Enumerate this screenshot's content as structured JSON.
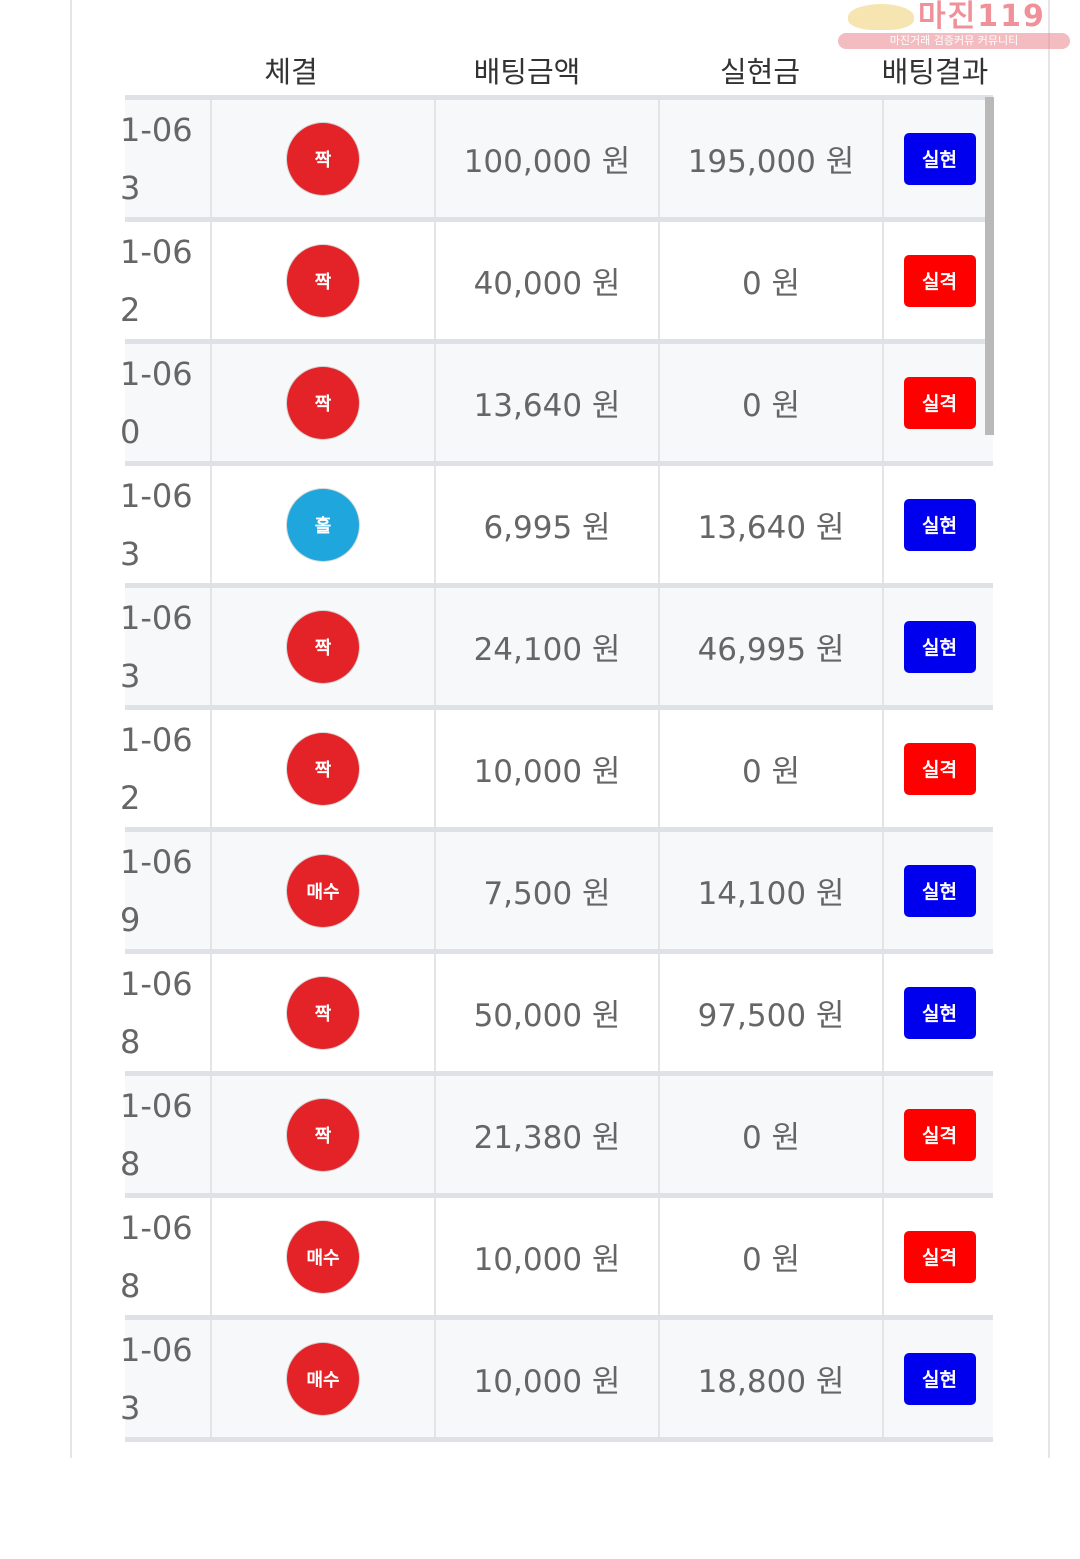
{
  "headers": {
    "executed": "체결",
    "bet_amount": "배팅금액",
    "realized": "실현금",
    "result": "배팅결과"
  },
  "watermark": {
    "title": "마진119",
    "subtitle": "마진거래 검증커뮤 커뮤니티"
  },
  "colors": {
    "red_circle": "#e32327",
    "blue_circle": "#1ea6dd",
    "win_badge": "#0000ee",
    "lose_badge": "#ff0000"
  },
  "rows": [
    {
      "date": "1-06",
      "num": "3",
      "pick": "짝",
      "pick_color": "red",
      "bet": "100,000 원",
      "realized": "195,000 원",
      "result": "실현",
      "result_type": "win"
    },
    {
      "date": "1-06",
      "num": "2",
      "pick": "짝",
      "pick_color": "red",
      "bet": "40,000 원",
      "realized": "0 원",
      "result": "실격",
      "result_type": "lose"
    },
    {
      "date": "1-06",
      "num": "0",
      "pick": "짝",
      "pick_color": "red",
      "bet": "13,640 원",
      "realized": "0 원",
      "result": "실격",
      "result_type": "lose"
    },
    {
      "date": "1-06",
      "num": "3",
      "pick": "홀",
      "pick_color": "blue",
      "bet": "6,995 원",
      "realized": "13,640 원",
      "result": "실현",
      "result_type": "win"
    },
    {
      "date": "1-06",
      "num": "3",
      "pick": "짝",
      "pick_color": "red",
      "bet": "24,100 원",
      "realized": "46,995 원",
      "result": "실현",
      "result_type": "win"
    },
    {
      "date": "1-06",
      "num": "2",
      "pick": "짝",
      "pick_color": "red",
      "bet": "10,000 원",
      "realized": "0 원",
      "result": "실격",
      "result_type": "lose"
    },
    {
      "date": "1-06",
      "num": "9",
      "pick": "매수",
      "pick_color": "red",
      "bet": "7,500 원",
      "realized": "14,100 원",
      "result": "실현",
      "result_type": "win"
    },
    {
      "date": "1-06",
      "num": "8",
      "pick": "짝",
      "pick_color": "red",
      "bet": "50,000 원",
      "realized": "97,500 원",
      "result": "실현",
      "result_type": "win"
    },
    {
      "date": "1-06",
      "num": "8",
      "pick": "짝",
      "pick_color": "red",
      "bet": "21,380 원",
      "realized": "0 원",
      "result": "실격",
      "result_type": "lose"
    },
    {
      "date": "1-06",
      "num": "8",
      "pick": "매수",
      "pick_color": "red",
      "bet": "10,000 원",
      "realized": "0 원",
      "result": "실격",
      "result_type": "lose"
    },
    {
      "date": "1-06",
      "num": "3",
      "pick": "매수",
      "pick_color": "red",
      "bet": "10,000 원",
      "realized": "18,800 원",
      "result": "실현",
      "result_type": "win"
    }
  ]
}
